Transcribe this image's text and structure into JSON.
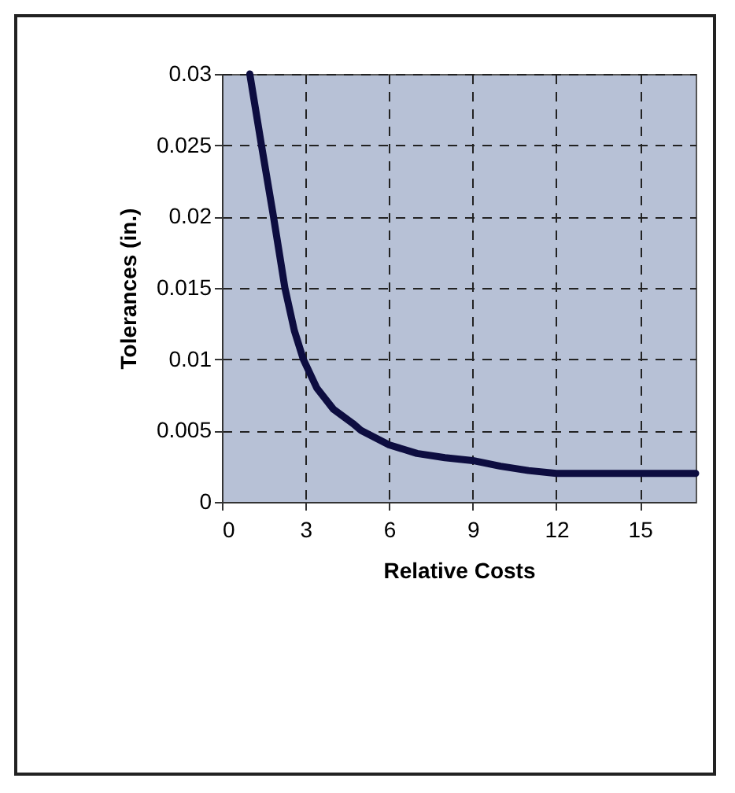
{
  "chart_data": {
    "type": "line",
    "xlabel": "Relative Costs",
    "ylabel": "Tolerances (in.)",
    "x": [
      1.0,
      1.42,
      1.85,
      2.26,
      2.6,
      2.92,
      3.4,
      4.0,
      4.7,
      5.0,
      6.0,
      7.0,
      8.0,
      9.0,
      10.0,
      11.0,
      12.0,
      15.0,
      17.0
    ],
    "series": [
      {
        "color": "#0d0d40",
        "values": [
          0.03,
          0.025,
          0.02,
          0.015,
          0.012,
          0.01,
          0.008,
          0.0065,
          0.0055,
          0.005,
          0.004,
          0.0034,
          0.0031,
          0.0029,
          0.0025,
          0.0022,
          0.002,
          0.002,
          0.002
        ]
      }
    ],
    "xlim": [
      0,
      17
    ],
    "xticks": [
      0,
      3,
      6,
      9,
      12,
      15
    ],
    "ylim": [
      0,
      0.03
    ],
    "yticks": [
      0,
      0.005,
      0.01,
      0.015,
      0.02,
      0.025,
      0.03
    ],
    "grid": true,
    "line_style": "solid",
    "marker": "none",
    "legend": false
  }
}
